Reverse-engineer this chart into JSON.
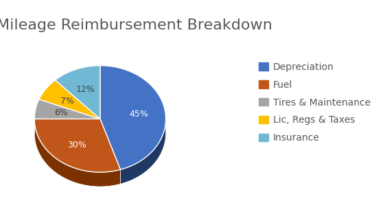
{
  "title": "Mileage Reimbursement Breakdown",
  "labels": [
    "Depreciation",
    "Fuel",
    "Tires & Maintenance",
    "Lic, Regs & Taxes",
    "Insurance"
  ],
  "values": [
    45,
    30,
    6,
    7,
    12
  ],
  "colors": [
    "#4472C4",
    "#C0561A",
    "#A5A5A5",
    "#FFC000",
    "#70B8D4"
  ],
  "dark_colors": [
    "#1F3864",
    "#7B3100",
    "#666666",
    "#B38600",
    "#2E75B6"
  ],
  "pct_labels": [
    "45%",
    "30%",
    "6%",
    "7%",
    "12%"
  ],
  "title_fontsize": 16,
  "title_color": "#595959",
  "legend_fontsize": 10,
  "background_color": "#ffffff",
  "startangle": 90
}
